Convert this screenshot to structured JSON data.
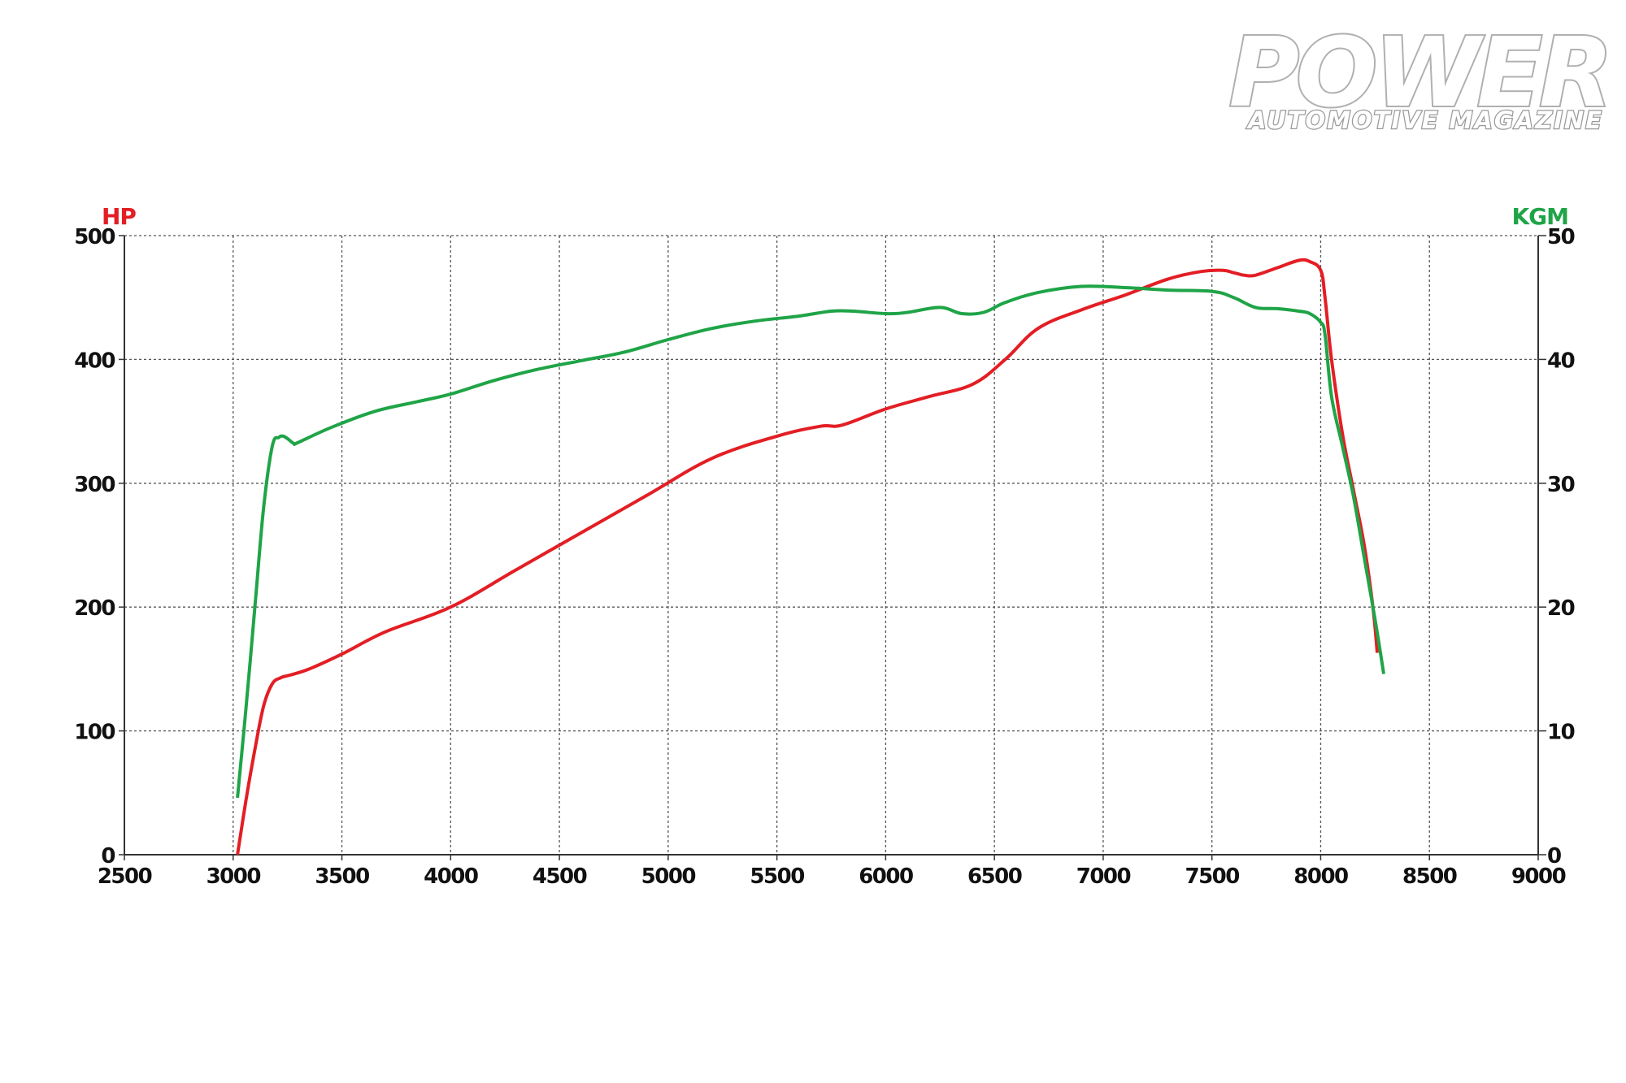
{
  "logo": {
    "title": "POWER",
    "subtitle": "AUTOMOTIVE MAGAZINE"
  },
  "chart_data": {
    "type": "line",
    "title": "",
    "xlabel": "",
    "xlim": [
      2500,
      9000
    ],
    "x_ticks": [
      2500,
      3000,
      3500,
      4000,
      4500,
      5000,
      5500,
      6000,
      6500,
      7000,
      7500,
      8000,
      8500,
      9000
    ],
    "left_axis": {
      "label": "HP",
      "color": "#e31e24",
      "ylim": [
        0,
        500
      ],
      "ticks": [
        0,
        100,
        200,
        300,
        400,
        500
      ]
    },
    "right_axis": {
      "label": "KGM",
      "color": "#1fa447",
      "ylim": [
        0,
        50
      ],
      "ticks": [
        0,
        10,
        20,
        30,
        40,
        50
      ]
    },
    "grid": true,
    "series": [
      {
        "axis": "left",
        "color": "#e31e24",
        "x": [
          3020,
          3060,
          3100,
          3140,
          3180,
          3220,
          3260,
          3350,
          3500,
          3700,
          4000,
          4300,
          4600,
          4900,
          5200,
          5500,
          5700,
          5800,
          6000,
          6200,
          6400,
          6550,
          6700,
          6900,
          7100,
          7300,
          7450,
          7550,
          7600,
          7650,
          7700,
          7800,
          7900,
          7950,
          8000,
          8020,
          8050,
          8100,
          8150,
          8200,
          8240,
          8260
        ],
        "values": [
          0,
          45,
          85,
          120,
          138,
          143,
          145,
          150,
          162,
          180,
          200,
          230,
          260,
          290,
          320,
          338,
          346,
          347,
          360,
          370,
          380,
          400,
          425,
          440,
          452,
          465,
          471,
          472,
          470,
          468,
          468,
          474,
          480,
          479,
          472,
          450,
          400,
          340,
          295,
          250,
          200,
          163
        ]
      },
      {
        "axis": "right",
        "color": "#1fa447",
        "x": [
          3020,
          3060,
          3100,
          3140,
          3180,
          3210,
          3230,
          3250,
          3280,
          3300,
          3450,
          3650,
          3850,
          4000,
          4200,
          4400,
          4600,
          4800,
          5000,
          5200,
          5400,
          5600,
          5750,
          5850,
          6000,
          6100,
          6250,
          6350,
          6450,
          6550,
          6700,
          6900,
          7100,
          7300,
          7500,
          7600,
          7700,
          7800,
          7900,
          7950,
          8000,
          8020,
          8050,
          8100,
          8150,
          8200,
          8250,
          8290
        ],
        "values": [
          4.6,
          12,
          20,
          28,
          33,
          33.7,
          33.8,
          33.6,
          33.2,
          33.3,
          34.5,
          35.8,
          36.6,
          37.2,
          38.3,
          39.2,
          39.9,
          40.6,
          41.6,
          42.5,
          43.1,
          43.5,
          43.9,
          43.9,
          43.7,
          43.8,
          44.2,
          43.7,
          43.8,
          44.6,
          45.4,
          45.9,
          45.8,
          45.6,
          45.5,
          45.0,
          44.2,
          44.1,
          43.9,
          43.7,
          43.0,
          42.0,
          37.0,
          33.0,
          29.0,
          24.0,
          19.0,
          14.6
        ]
      }
    ]
  }
}
